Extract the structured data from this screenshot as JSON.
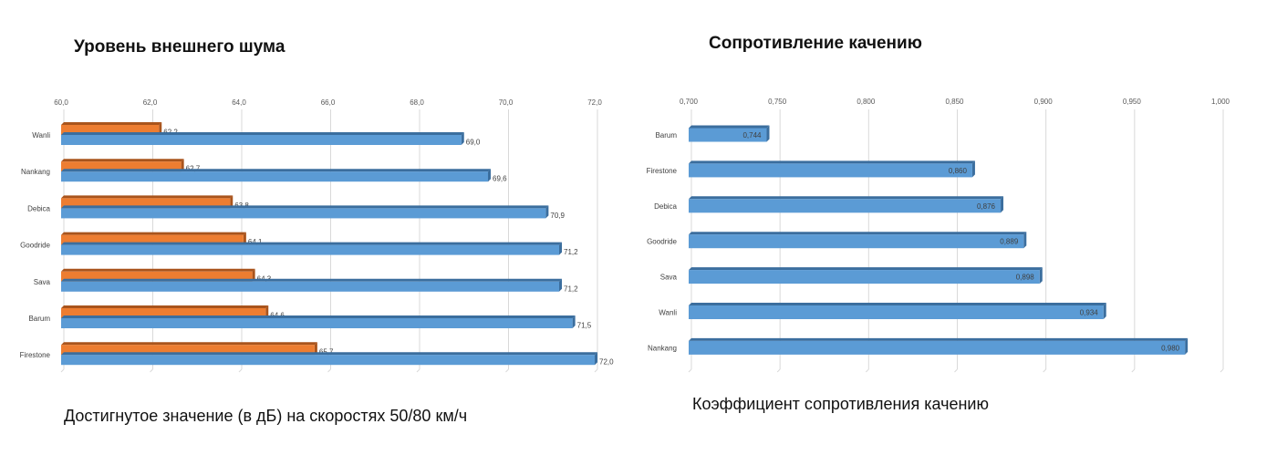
{
  "colors": {
    "orange": "#ED7D31",
    "orange_dark": "#A9541C",
    "blue": "#5B9BD5",
    "blue_dark": "#3B6E9E",
    "grid": "#D9D9D9"
  },
  "captions": {
    "left": "Достигнутое значение (в дБ) на скоростях 50/80 км/ч",
    "right": "Коэффициент сопротивления качению"
  },
  "chart_data": [
    {
      "type": "bar",
      "orientation": "horizontal",
      "title": "Уровень внешнего шума",
      "categories": [
        "Wanli",
        "Nankang",
        "Debica",
        "Goodride",
        "Sava",
        "Barum",
        "Firestone"
      ],
      "series": [
        {
          "color": "orange",
          "values": [
            62.2,
            62.7,
            63.8,
            64.1,
            64.3,
            64.6,
            65.7
          ],
          "labels": [
            "62,2",
            "62,7",
            "63,8",
            "64,1",
            "64,3",
            "64,6",
            "65,7"
          ]
        },
        {
          "color": "blue",
          "values": [
            69.0,
            69.6,
            70.9,
            71.2,
            71.2,
            71.5,
            72.0
          ],
          "labels": [
            "69,0",
            "69,6",
            "70,9",
            "71,2",
            "71,2",
            "71,5",
            "72,0"
          ]
        }
      ],
      "xlim": [
        60,
        72
      ],
      "ticks": [
        "60,0",
        "62,0",
        "64,0",
        "66,0",
        "68,0",
        "70,0",
        "72,0"
      ],
      "grid": true
    },
    {
      "type": "bar",
      "orientation": "horizontal",
      "title": "Сопротивление качению",
      "categories": [
        "Barum",
        "Firestone",
        "Debica",
        "Goodride",
        "Sava",
        "Wanli",
        "Nankang"
      ],
      "series": [
        {
          "color": "blue",
          "values": [
            0.744,
            0.86,
            0.876,
            0.889,
            0.898,
            0.934,
            0.98
          ],
          "labels": [
            "0,744",
            "0,860",
            "0,876",
            "0,889",
            "0,898",
            "0,934",
            "0,980"
          ]
        }
      ],
      "xlim": [
        0.7,
        1.0
      ],
      "ticks": [
        "0,700",
        "0,750",
        "0,800",
        "0,850",
        "0,900",
        "0,950",
        "1,000"
      ],
      "grid": true
    }
  ]
}
